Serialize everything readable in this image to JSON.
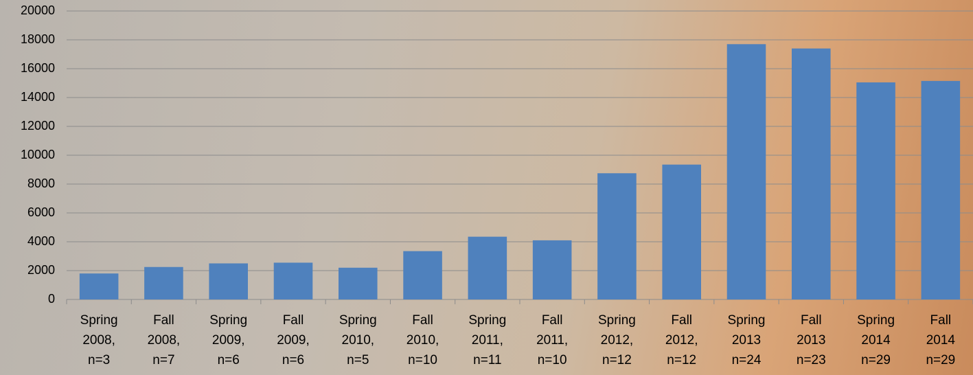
{
  "chart_data": {
    "type": "bar",
    "categories": [
      "Spring 2008, n=3",
      "Fall 2008, n=7",
      "Spring 2009, n=6",
      "Fall 2009, n=6",
      "Spring 2010, n=5",
      "Fall 2010, n=10",
      "Spring 2011, n=11",
      "Fall 2011, n=10",
      "Spring 2012, n=12",
      "Fall 2012, n=12",
      "Spring 2013 n=24",
      "Fall 2013 n=23",
      "Spring 2014 n=29",
      "Fall 2014 n=29"
    ],
    "values": [
      1800,
      2250,
      2500,
      2550,
      2200,
      3350,
      4350,
      4100,
      8750,
      9350,
      17700,
      17400,
      15050,
      15150
    ],
    "color": "#4f81bd",
    "ylim": [
      0,
      20000
    ],
    "yticks": [
      0,
      2000,
      4000,
      6000,
      8000,
      10000,
      12000,
      14000,
      16000,
      18000,
      20000
    ],
    "grid": true
  }
}
